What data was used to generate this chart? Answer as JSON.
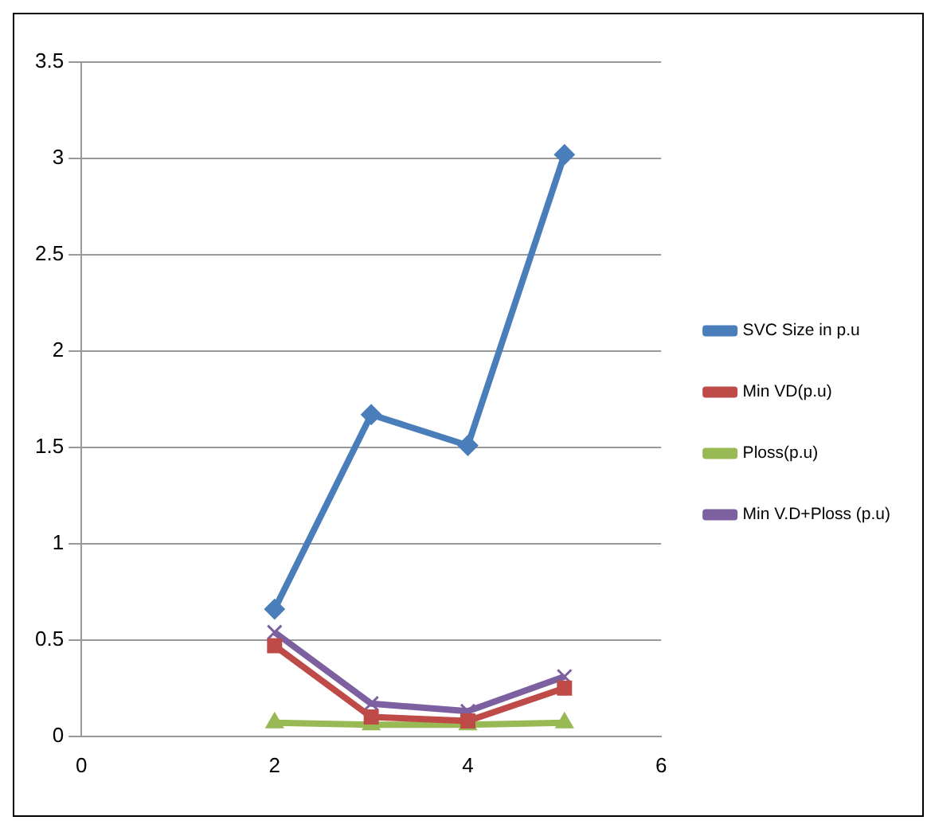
{
  "chart_data": {
    "type": "line",
    "x": [
      2,
      3,
      4,
      5
    ],
    "xlim": [
      0,
      6
    ],
    "xticks": [
      0,
      2,
      4,
      6
    ],
    "ylim": [
      0,
      3.5
    ],
    "yticks": [
      0,
      0.5,
      1,
      1.5,
      2,
      2.5,
      3,
      3.5
    ],
    "grid": "y",
    "legend": "right",
    "series": [
      {
        "name": "SVC Size in p.u",
        "color": "#4a7ebb",
        "marker": "diamond",
        "values": [
          0.66,
          1.67,
          1.51,
          3.02
        ]
      },
      {
        "name": "Min VD(p.u)",
        "color": "#be4b48",
        "marker": "square",
        "values": [
          0.47,
          0.1,
          0.08,
          0.25
        ]
      },
      {
        "name": "Ploss(p.u)",
        "color": "#98b954",
        "marker": "triangle",
        "values": [
          0.07,
          0.06,
          0.06,
          0.07
        ]
      },
      {
        "name": "Min V.D+Ploss (p.u)",
        "color": "#7d60a0",
        "marker": "cross",
        "values": [
          0.54,
          0.17,
          0.13,
          0.31
        ]
      }
    ]
  }
}
